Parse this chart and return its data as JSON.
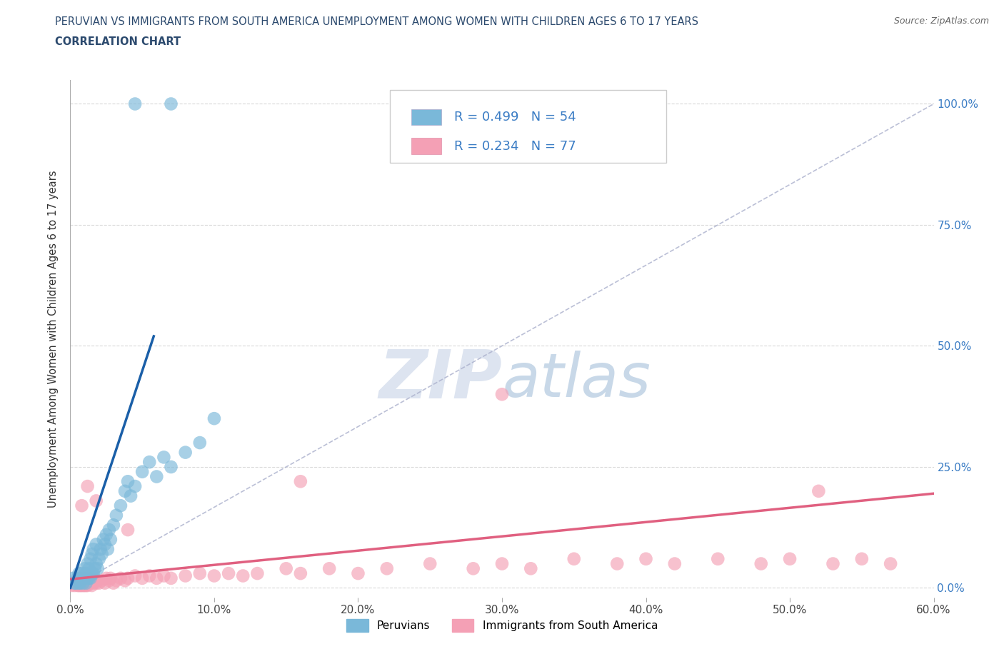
{
  "title_line1": "PERUVIAN VS IMMIGRANTS FROM SOUTH AMERICA UNEMPLOYMENT AMONG WOMEN WITH CHILDREN AGES 6 TO 17 YEARS",
  "title_line2": "CORRELATION CHART",
  "source": "Source: ZipAtlas.com",
  "ylabel": "Unemployment Among Women with Children Ages 6 to 17 years",
  "xlim": [
    0.0,
    0.6
  ],
  "ylim": [
    -0.02,
    1.05
  ],
  "xtick_values": [
    0.0,
    0.1,
    0.2,
    0.3,
    0.4,
    0.5,
    0.6
  ],
  "xtick_labels": [
    "0.0%",
    "10.0%",
    "20.0%",
    "30.0%",
    "40.0%",
    "50.0%",
    "60.0%"
  ],
  "ytick_values": [
    0.0,
    0.25,
    0.5,
    0.75,
    1.0
  ],
  "ytick_labels_right": [
    "0.0%",
    "25.0%",
    "50.0%",
    "75.0%",
    "100.0%"
  ],
  "peruvian_color": "#7ab8d9",
  "immigrant_color": "#f4a0b5",
  "peruvian_line_color": "#1a5fa8",
  "immigrant_line_color": "#e06080",
  "diagonal_color": "#aab0cc",
  "peruvian_R": 0.499,
  "peruvian_N": 54,
  "immigrant_R": 0.234,
  "immigrant_N": 77,
  "legend_label_peru": "Peruvians",
  "legend_label_immig": "Immigrants from South America",
  "watermark_zip": "ZIP",
  "watermark_atlas": "atlas",
  "background_color": "#ffffff",
  "grid_color": "#d0d0d0",
  "title_color": "#2c4a6e",
  "right_axis_color": "#3a7cc4",
  "peru_x": [
    0.002,
    0.003,
    0.004,
    0.005,
    0.006,
    0.006,
    0.007,
    0.008,
    0.008,
    0.009,
    0.01,
    0.01,
    0.011,
    0.011,
    0.012,
    0.012,
    0.013,
    0.013,
    0.014,
    0.014,
    0.015,
    0.015,
    0.016,
    0.016,
    0.017,
    0.018,
    0.018,
    0.019,
    0.02,
    0.021,
    0.022,
    0.023,
    0.024,
    0.025,
    0.026,
    0.027,
    0.028,
    0.03,
    0.032,
    0.035,
    0.038,
    0.04,
    0.042,
    0.045,
    0.05,
    0.055,
    0.06,
    0.065,
    0.07,
    0.08,
    0.09,
    0.1,
    0.045,
    0.07
  ],
  "peru_y": [
    0.02,
    0.01,
    0.01,
    0.02,
    0.01,
    0.03,
    0.01,
    0.02,
    0.03,
    0.01,
    0.02,
    0.04,
    0.01,
    0.03,
    0.02,
    0.05,
    0.02,
    0.04,
    0.02,
    0.06,
    0.03,
    0.07,
    0.03,
    0.08,
    0.04,
    0.05,
    0.09,
    0.04,
    0.06,
    0.08,
    0.07,
    0.1,
    0.09,
    0.11,
    0.08,
    0.12,
    0.1,
    0.13,
    0.15,
    0.17,
    0.2,
    0.22,
    0.19,
    0.21,
    0.24,
    0.26,
    0.23,
    0.27,
    0.25,
    0.28,
    0.3,
    0.35,
    1.0,
    1.0
  ],
  "immig_x": [
    0.001,
    0.002,
    0.003,
    0.004,
    0.005,
    0.005,
    0.006,
    0.006,
    0.007,
    0.007,
    0.008,
    0.008,
    0.009,
    0.009,
    0.01,
    0.01,
    0.011,
    0.011,
    0.012,
    0.012,
    0.013,
    0.014,
    0.015,
    0.015,
    0.016,
    0.017,
    0.018,
    0.019,
    0.02,
    0.022,
    0.024,
    0.025,
    0.027,
    0.028,
    0.03,
    0.032,
    0.035,
    0.038,
    0.04,
    0.045,
    0.05,
    0.055,
    0.06,
    0.065,
    0.07,
    0.08,
    0.09,
    0.1,
    0.11,
    0.12,
    0.13,
    0.15,
    0.16,
    0.18,
    0.2,
    0.22,
    0.25,
    0.28,
    0.3,
    0.32,
    0.35,
    0.38,
    0.4,
    0.42,
    0.45,
    0.48,
    0.5,
    0.53,
    0.55,
    0.57,
    0.3,
    0.16,
    0.04,
    0.018,
    0.012,
    0.008,
    0.52
  ],
  "immig_y": [
    0.005,
    0.01,
    0.005,
    0.01,
    0.005,
    0.015,
    0.005,
    0.02,
    0.005,
    0.015,
    0.005,
    0.02,
    0.005,
    0.015,
    0.005,
    0.02,
    0.005,
    0.015,
    0.005,
    0.02,
    0.01,
    0.015,
    0.005,
    0.02,
    0.01,
    0.015,
    0.01,
    0.015,
    0.01,
    0.015,
    0.01,
    0.02,
    0.015,
    0.02,
    0.01,
    0.015,
    0.02,
    0.015,
    0.02,
    0.025,
    0.02,
    0.025,
    0.02,
    0.025,
    0.02,
    0.025,
    0.03,
    0.025,
    0.03,
    0.025,
    0.03,
    0.04,
    0.03,
    0.04,
    0.03,
    0.04,
    0.05,
    0.04,
    0.05,
    0.04,
    0.06,
    0.05,
    0.06,
    0.05,
    0.06,
    0.05,
    0.06,
    0.05,
    0.06,
    0.05,
    0.4,
    0.22,
    0.12,
    0.18,
    0.21,
    0.17,
    0.2
  ]
}
